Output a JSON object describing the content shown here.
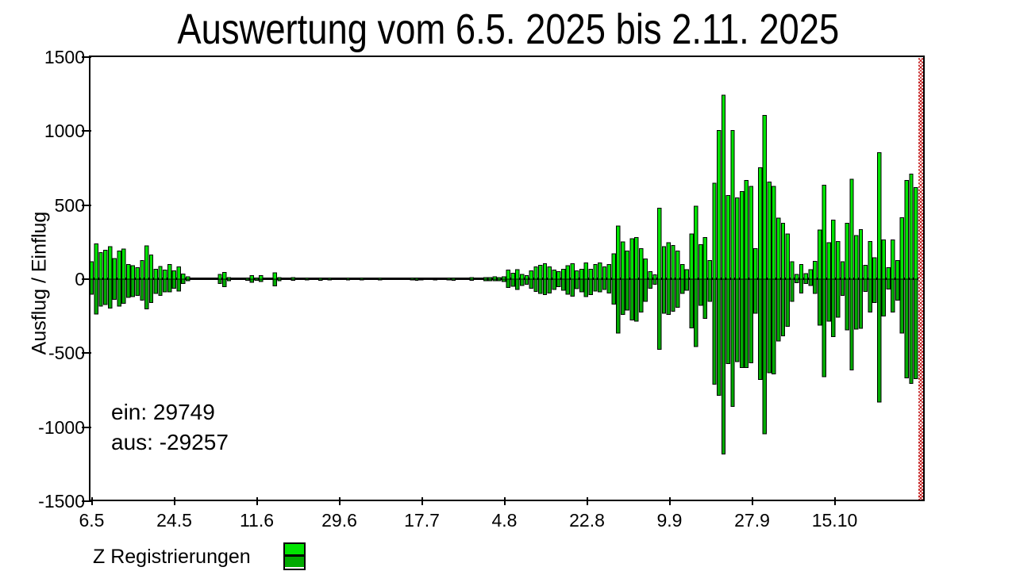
{
  "title": "Auswertung vom 6.5. 2025 bis 2.11. 2025",
  "annotations": {
    "ein_label": "ein: 29749",
    "aus_label": "aus: -29257"
  },
  "legend": {
    "label": "Z Registrierungen"
  },
  "colors": {
    "bar_up": "#00e400",
    "bar_down": "#00aa00",
    "hatch": "#c52222",
    "axis": "#000000"
  },
  "chart_data": {
    "type": "bar",
    "title": "Auswertung vom 6.5. 2025 bis 2.11. 2025",
    "xlabel": "",
    "ylabel": "Ausflug / Einflug",
    "ylim": [
      -1500,
      1500
    ],
    "yticks": [
      1500,
      1000,
      500,
      0,
      -500,
      -1000,
      -1500
    ],
    "xticks": [
      "6.5",
      "24.5",
      "11.6",
      "29.6",
      "17.7",
      "4.8",
      "22.8",
      "9.9",
      "27.9",
      "15.10"
    ],
    "grid": false,
    "legend_position": "bottom-left",
    "series_name": "Z Registrierungen",
    "totals": {
      "ein": 29749,
      "aus": -29257
    },
    "period": {
      "start": "6.5.2025",
      "end": "2.11.2025"
    },
    "bars_unit": "registrations per day, up = Einflug, down = Ausflug",
    "bars": [
      [
        118,
        -102
      ],
      [
        238,
        -236
      ],
      [
        180,
        -182
      ],
      [
        195,
        -171
      ],
      [
        220,
        -195
      ],
      [
        139,
        -136
      ],
      [
        189,
        -182
      ],
      [
        204,
        -163
      ],
      [
        100,
        -123
      ],
      [
        91,
        -118
      ],
      [
        79,
        -111
      ],
      [
        127,
        -141
      ],
      [
        225,
        -200
      ],
      [
        163,
        -159
      ],
      [
        68,
        -96
      ],
      [
        86,
        -111
      ],
      [
        61,
        -87
      ],
      [
        100,
        -87
      ],
      [
        55,
        -61
      ],
      [
        82,
        -79
      ],
      [
        36,
        -30
      ],
      [
        15,
        -12
      ],
      [
        0,
        0
      ],
      [
        0,
        0
      ],
      [
        0,
        0
      ],
      [
        0,
        0
      ],
      [
        0,
        0
      ],
      [
        0,
        0
      ],
      [
        32,
        -29
      ],
      [
        46,
        -52
      ],
      [
        10,
        -12
      ],
      [
        0,
        0
      ],
      [
        0,
        0
      ],
      [
        0,
        0
      ],
      [
        8,
        -8
      ],
      [
        25,
        -21
      ],
      [
        8,
        -8
      ],
      [
        25,
        -16
      ],
      [
        0,
        0
      ],
      [
        0,
        0
      ],
      [
        43,
        -46
      ],
      [
        10,
        -10
      ],
      [
        0,
        0
      ],
      [
        0,
        0
      ],
      [
        10,
        -8
      ],
      [
        0,
        0
      ],
      [
        0,
        0
      ],
      [
        8,
        -6
      ],
      [
        0,
        0
      ],
      [
        0,
        0
      ],
      [
        8,
        -8
      ],
      [
        0,
        0
      ],
      [
        8,
        -6
      ],
      [
        0,
        0
      ],
      [
        0,
        0
      ],
      [
        0,
        0
      ],
      [
        8,
        -6
      ],
      [
        0,
        0
      ],
      [
        0,
        0
      ],
      [
        8,
        -5
      ],
      [
        0,
        0
      ],
      [
        0,
        0
      ],
      [
        0,
        0
      ],
      [
        8,
        -6
      ],
      [
        0,
        0
      ],
      [
        0,
        0
      ],
      [
        0,
        0
      ],
      [
        0,
        0
      ],
      [
        0,
        0
      ],
      [
        0,
        0
      ],
      [
        8,
        -6
      ],
      [
        8,
        -8
      ],
      [
        6,
        -6
      ],
      [
        0,
        0
      ],
      [
        0,
        0
      ],
      [
        6,
        -5
      ],
      [
        0,
        0
      ],
      [
        0,
        0
      ],
      [
        8,
        -6
      ],
      [
        8,
        -8
      ],
      [
        0,
        0
      ],
      [
        0,
        0
      ],
      [
        0,
        0
      ],
      [
        10,
        -8
      ],
      [
        0,
        0
      ],
      [
        0,
        0
      ],
      [
        12,
        -10
      ],
      [
        12,
        -12
      ],
      [
        15,
        -12
      ],
      [
        10,
        -10
      ],
      [
        15,
        -15
      ],
      [
        61,
        -57
      ],
      [
        41,
        -48
      ],
      [
        64,
        -70
      ],
      [
        32,
        -43
      ],
      [
        25,
        -34
      ],
      [
        55,
        -61
      ],
      [
        82,
        -82
      ],
      [
        95,
        -96
      ],
      [
        104,
        -105
      ],
      [
        82,
        -93
      ],
      [
        61,
        -70
      ],
      [
        50,
        -52
      ],
      [
        68,
        -75
      ],
      [
        91,
        -102
      ],
      [
        104,
        -114
      ],
      [
        55,
        -64
      ],
      [
        68,
        -87
      ],
      [
        109,
        -118
      ],
      [
        68,
        -105
      ],
      [
        100,
        -79
      ],
      [
        109,
        -87
      ],
      [
        82,
        -70
      ],
      [
        100,
        -93
      ],
      [
        171,
        -168
      ],
      [
        360,
        -365
      ],
      [
        252,
        -239
      ],
      [
        190,
        -210
      ],
      [
        273,
        -275
      ],
      [
        282,
        -284
      ],
      [
        207,
        -221
      ],
      [
        136,
        -150
      ],
      [
        50,
        -61
      ],
      [
        29,
        -34
      ],
      [
        479,
        -475
      ],
      [
        221,
        -230
      ],
      [
        246,
        -239
      ],
      [
        229,
        -218
      ],
      [
        189,
        -189
      ],
      [
        100,
        -96
      ],
      [
        64,
        -75
      ],
      [
        305,
        -329
      ],
      [
        493,
        -454
      ],
      [
        234,
        -177
      ],
      [
        282,
        -266
      ],
      [
        127,
        -150
      ],
      [
        648,
        -709
      ],
      [
        1005,
        -784
      ],
      [
        1243,
        -1180
      ],
      [
        564,
        -570
      ],
      [
        1005,
        -861
      ],
      [
        550,
        -557
      ],
      [
        591,
        -596
      ],
      [
        666,
        -596
      ],
      [
        627,
        -566
      ],
      [
        207,
        -230
      ],
      [
        752,
        -677
      ],
      [
        1105,
        -1045
      ],
      [
        657,
        -632
      ],
      [
        627,
        -641
      ],
      [
        413,
        -418
      ],
      [
        377,
        -382
      ],
      [
        305,
        -320
      ],
      [
        118,
        -150
      ],
      [
        32,
        -25
      ],
      [
        100,
        -93
      ],
      [
        37,
        -30
      ],
      [
        64,
        -43
      ],
      [
        121,
        -96
      ],
      [
        332,
        -311
      ],
      [
        636,
        -659
      ],
      [
        246,
        -284
      ],
      [
        398,
        -388
      ],
      [
        255,
        -257
      ],
      [
        118,
        -111
      ],
      [
        377,
        -343
      ],
      [
        675,
        -614
      ],
      [
        296,
        -338
      ],
      [
        336,
        -332
      ],
      [
        95,
        -84
      ],
      [
        255,
        -221
      ],
      [
        145,
        -159
      ],
      [
        854,
        -829
      ],
      [
        264,
        -248
      ],
      [
        77,
        -66
      ],
      [
        264,
        -221
      ],
      [
        127,
        -141
      ],
      [
        416,
        -364
      ],
      [
        666,
        -668
      ],
      [
        711,
        -704
      ],
      [
        618,
        -673
      ]
    ]
  }
}
